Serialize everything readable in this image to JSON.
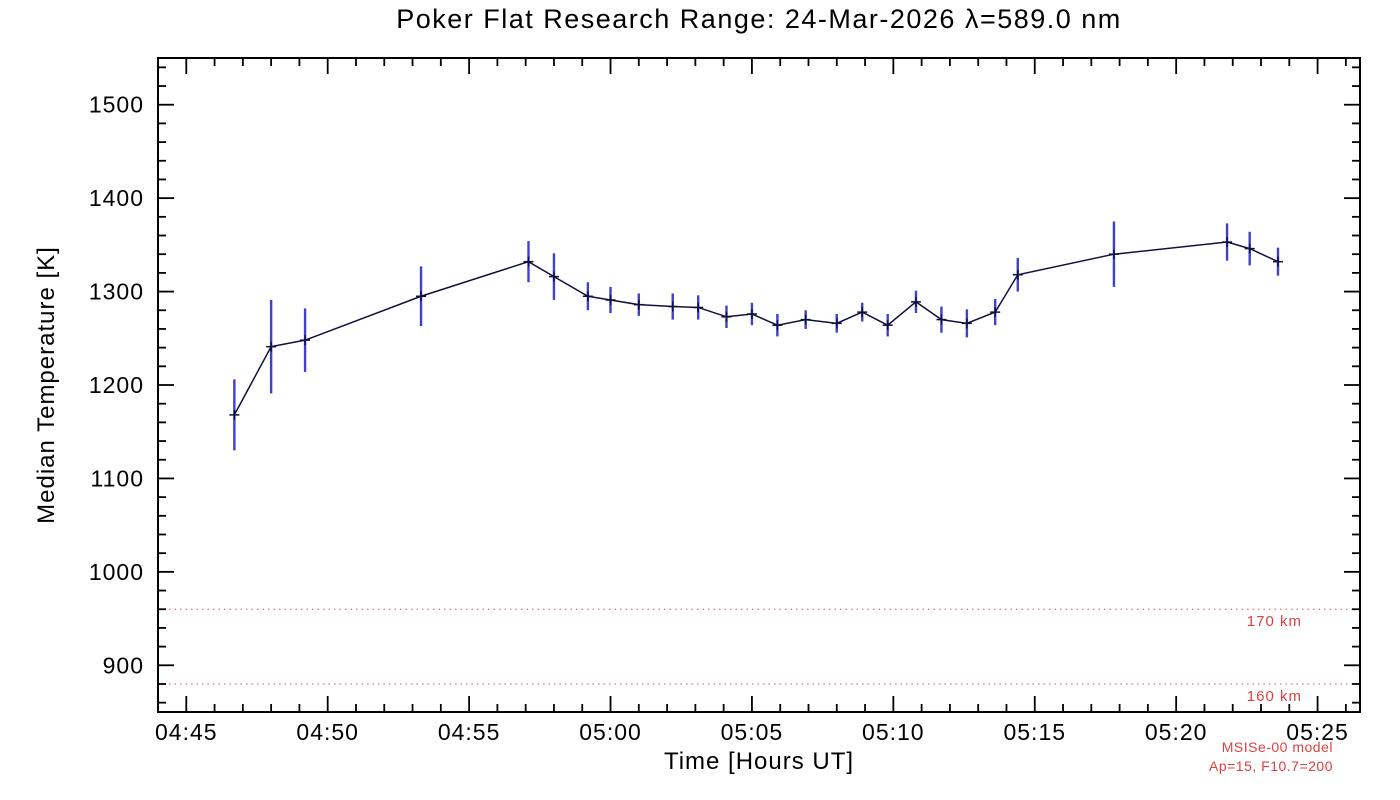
{
  "page": {
    "background": "#ffffff"
  },
  "chart_data": {
    "type": "line",
    "title": "Poker Flat Research Range: 24-Mar-2026 λ=589.0 nm",
    "xlabel": "Time [Hours UT]",
    "ylabel": "Median Temperature [K]",
    "x_unit": "minutes UT",
    "xlim": [
      284,
      326.5
    ],
    "ylim": [
      850,
      1550
    ],
    "grid": false,
    "legend": null,
    "axis_color": "#000000",
    "x_major_ticks": [
      {
        "minutes": 285,
        "label": "04:45"
      },
      {
        "minutes": 290,
        "label": "04:50"
      },
      {
        "minutes": 295,
        "label": "04:55"
      },
      {
        "minutes": 300,
        "label": "05:00"
      },
      {
        "minutes": 305,
        "label": "05:05"
      },
      {
        "minutes": 310,
        "label": "05:10"
      },
      {
        "minutes": 315,
        "label": "05:15"
      },
      {
        "minutes": 320,
        "label": "05:20"
      },
      {
        "minutes": 325,
        "label": "05:25"
      }
    ],
    "x_minor_step": 1,
    "y_major_ticks": [
      900,
      1000,
      1100,
      1200,
      1300,
      1400,
      1500
    ],
    "y_minor_step": 20,
    "series": [
      {
        "name": "Median Temperature",
        "line_color": "#101040",
        "errorbar_color": "#4040cc",
        "marker": "plus",
        "points": [
          {
            "minutes": 286.7,
            "temp": 1168,
            "err": 38
          },
          {
            "minutes": 288.0,
            "temp": 1241,
            "err": 50
          },
          {
            "minutes": 289.2,
            "temp": 1248,
            "err": 34
          },
          {
            "minutes": 293.3,
            "temp": 1295,
            "err": 32
          },
          {
            "minutes": 297.1,
            "temp": 1332,
            "err": 22
          },
          {
            "minutes": 298.0,
            "temp": 1316,
            "err": 25
          },
          {
            "minutes": 299.2,
            "temp": 1295,
            "err": 15
          },
          {
            "minutes": 300.0,
            "temp": 1291,
            "err": 14
          },
          {
            "minutes": 301.0,
            "temp": 1286,
            "err": 12
          },
          {
            "minutes": 302.2,
            "temp": 1284,
            "err": 14
          },
          {
            "minutes": 303.1,
            "temp": 1283,
            "err": 13
          },
          {
            "minutes": 304.1,
            "temp": 1273,
            "err": 12
          },
          {
            "minutes": 305.0,
            "temp": 1276,
            "err": 12
          },
          {
            "minutes": 305.9,
            "temp": 1264,
            "err": 12
          },
          {
            "minutes": 306.9,
            "temp": 1270,
            "err": 10
          },
          {
            "minutes": 308.0,
            "temp": 1266,
            "err": 10
          },
          {
            "minutes": 308.9,
            "temp": 1278,
            "err": 10
          },
          {
            "minutes": 309.8,
            "temp": 1264,
            "err": 12
          },
          {
            "minutes": 310.8,
            "temp": 1289,
            "err": 12
          },
          {
            "minutes": 311.7,
            "temp": 1270,
            "err": 14
          },
          {
            "minutes": 312.6,
            "temp": 1266,
            "err": 15
          },
          {
            "minutes": 313.6,
            "temp": 1278,
            "err": 14
          },
          {
            "minutes": 314.4,
            "temp": 1318,
            "err": 18
          },
          {
            "minutes": 317.8,
            "temp": 1340,
            "err": 35
          },
          {
            "minutes": 321.8,
            "temp": 1353,
            "err": 20
          },
          {
            "minutes": 322.6,
            "temp": 1346,
            "err": 18
          },
          {
            "minutes": 323.6,
            "temp": 1332,
            "err": 15
          }
        ]
      }
    ],
    "reference_lines": [
      {
        "temp": 960,
        "label": "170 km",
        "color": "#e07878",
        "label_color": "#e04040",
        "style": "dotted"
      },
      {
        "temp": 880,
        "label": "160 km",
        "color": "#e07878",
        "label_color": "#e04040",
        "style": "dotted"
      }
    ],
    "annotations": [
      {
        "text": "MSISe-00 model",
        "color": "#e04040",
        "position": "bottom-right"
      },
      {
        "text": "Ap=15, F10.7=200",
        "color": "#e04040",
        "position": "bottom-right"
      }
    ]
  }
}
